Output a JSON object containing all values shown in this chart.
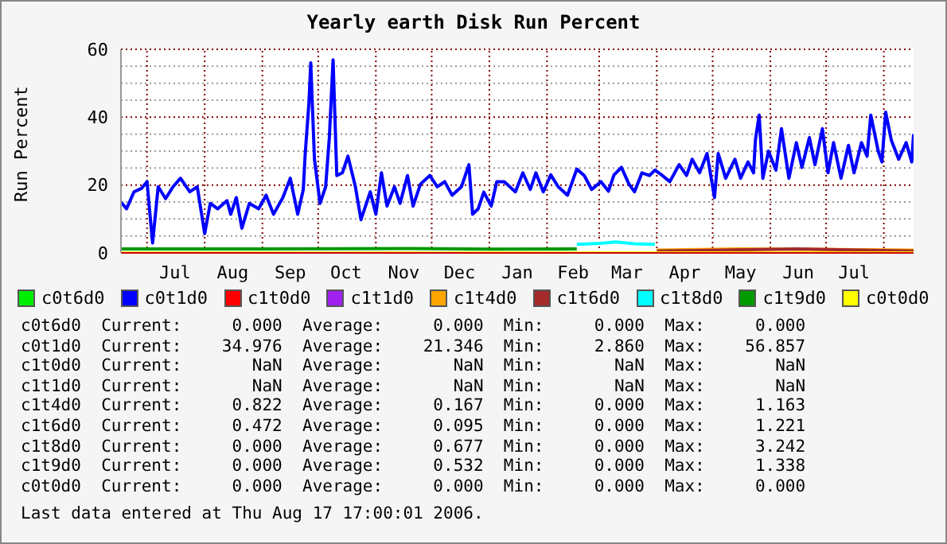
{
  "chart_data": {
    "type": "line",
    "title": "Yearly earth Disk Run Percent",
    "ylabel": "Run Percent",
    "xlim": [
      "2005-06-17",
      "2006-08-17"
    ],
    "xticks": [
      {
        "value": "2005-07-01",
        "label": null
      },
      {
        "value": "2005-07-16",
        "label": "Jul"
      },
      {
        "value": "2005-08-01",
        "label": null
      },
      {
        "value": "2005-08-16",
        "label": "Aug"
      },
      {
        "value": "2005-09-01",
        "label": null
      },
      {
        "value": "2005-09-16",
        "label": "Sep"
      },
      {
        "value": "2005-10-01",
        "label": null
      },
      {
        "value": "2005-10-16",
        "label": "Oct"
      },
      {
        "value": "2005-11-01",
        "label": null
      },
      {
        "value": "2005-11-16",
        "label": "Nov"
      },
      {
        "value": "2005-12-01",
        "label": null
      },
      {
        "value": "2005-12-16",
        "label": "Dec"
      },
      {
        "value": "2006-01-01",
        "label": null
      },
      {
        "value": "2006-01-16",
        "label": "Jan"
      },
      {
        "value": "2006-02-01",
        "label": null
      },
      {
        "value": "2006-02-15",
        "label": "Feb"
      },
      {
        "value": "2006-03-01",
        "label": null
      },
      {
        "value": "2006-03-16",
        "label": "Mar"
      },
      {
        "value": "2006-04-01",
        "label": null
      },
      {
        "value": "2006-04-16",
        "label": "Apr"
      },
      {
        "value": "2006-05-01",
        "label": null
      },
      {
        "value": "2006-05-16",
        "label": "May"
      },
      {
        "value": "2006-06-01",
        "label": null
      },
      {
        "value": "2006-06-16",
        "label": "Jun"
      },
      {
        "value": "2006-07-01",
        "label": null
      },
      {
        "value": "2006-07-16",
        "label": "Jul"
      },
      {
        "value": "2006-08-01",
        "label": null
      }
    ],
    "ylim": [
      0,
      60
    ],
    "yticks": [
      0,
      {
        "value": 5,
        "label": null
      },
      {
        "value": 10,
        "label": null
      },
      {
        "value": 15,
        "label": null
      },
      20,
      {
        "value": 25,
        "label": null
      },
      {
        "value": 30,
        "label": null
      },
      {
        "value": 35,
        "label": null
      },
      40,
      {
        "value": 45,
        "label": null
      },
      {
        "value": 50,
        "label": null
      },
      {
        "value": 55,
        "label": null
      },
      60
    ],
    "grid": true,
    "legend": "bottom",
    "marker": "none",
    "line_style": "solid",
    "series": [
      {
        "name": "c0t6d0",
        "color": "#00ee00"
      },
      {
        "name": "c0t1d0",
        "color": "#0000ff",
        "x": [
          "2005-06-17",
          "2005-06-20",
          "2005-06-24",
          "2005-06-28",
          "2005-07-01",
          "2005-07-04",
          "2005-07-07",
          "2005-07-11",
          "2005-07-15",
          "2005-07-19",
          "2005-07-24",
          "2005-07-28",
          "2005-08-01",
          "2005-08-04",
          "2005-08-08",
          "2005-08-13",
          "2005-08-15",
          "2005-08-18",
          "2005-08-21",
          "2005-08-25",
          "2005-08-30",
          "2005-09-03",
          "2005-09-07",
          "2005-09-12",
          "2005-09-16",
          "2005-09-20",
          "2005-09-23",
          "2005-09-24",
          "2005-09-26",
          "2005-09-27",
          "2005-09-29",
          "2005-10-02",
          "2005-10-05",
          "2005-10-07",
          "2005-10-09",
          "2005-10-11",
          "2005-10-14",
          "2005-10-17",
          "2005-10-21",
          "2005-10-24",
          "2005-10-29",
          "2005-11-01",
          "2005-11-04",
          "2005-11-07",
          "2005-11-11",
          "2005-11-14",
          "2005-11-18",
          "2005-11-21",
          "2005-11-25",
          "2005-11-30",
          "2005-12-04",
          "2005-12-08",
          "2005-12-12",
          "2005-12-17",
          "2005-12-21",
          "2005-12-23",
          "2005-12-26",
          "2005-12-29",
          "2006-01-02",
          "2006-01-05",
          "2006-01-09",
          "2006-01-15",
          "2006-01-19",
          "2006-01-23",
          "2006-01-26",
          "2006-01-30",
          "2006-02-03",
          "2006-02-07",
          "2006-02-12",
          "2006-02-17",
          "2006-02-21",
          "2006-02-25",
          "2006-03-02",
          "2006-03-06",
          "2006-03-09",
          "2006-03-13",
          "2006-03-17",
          "2006-03-20",
          "2006-03-24",
          "2006-03-28",
          "2006-03-31",
          "2006-04-04",
          "2006-04-08",
          "2006-04-13",
          "2006-04-17",
          "2006-04-20",
          "2006-04-24",
          "2006-04-28",
          "2006-05-02",
          "2006-05-04",
          "2006-05-08",
          "2006-05-13",
          "2006-05-16",
          "2006-05-20",
          "2006-05-23",
          "2006-05-24",
          "2006-05-26",
          "2006-05-28",
          "2006-05-31",
          "2006-06-04",
          "2006-06-07",
          "2006-06-11",
          "2006-06-15",
          "2006-06-18",
          "2006-06-22",
          "2006-06-25",
          "2006-06-29",
          "2006-07-02",
          "2006-07-05",
          "2006-07-09",
          "2006-07-13",
          "2006-07-16",
          "2006-07-20",
          "2006-07-23",
          "2006-07-25",
          "2006-07-29",
          "2006-07-31",
          "2006-08-02",
          "2006-08-05",
          "2006-08-09",
          "2006-08-13",
          "2006-08-16",
          "2006-08-17"
        ],
        "values": [
          15,
          13,
          18,
          19,
          21,
          2.9,
          19.5,
          16,
          19.5,
          22,
          18,
          19.5,
          5.7,
          14.6,
          13,
          15.4,
          11.4,
          16.3,
          7.3,
          14.6,
          13,
          17,
          11.4,
          16.3,
          22,
          11.4,
          18.7,
          29,
          44,
          56,
          27.6,
          14.6,
          19.5,
          34,
          56.9,
          22.8,
          23.6,
          28.5,
          19.5,
          9.8,
          18,
          11.4,
          23.6,
          13.8,
          19.5,
          14.6,
          22.8,
          13.8,
          20.3,
          22.8,
          19.5,
          21,
          17,
          19.5,
          26,
          11.4,
          13,
          17.9,
          13.8,
          21,
          21,
          18,
          23.6,
          18.7,
          23.6,
          18,
          23,
          19.5,
          17,
          24.7,
          22.8,
          18.7,
          21,
          18.2,
          23,
          25.2,
          20.3,
          18,
          23.6,
          22.8,
          24.4,
          22.8,
          21,
          26,
          22.8,
          27.6,
          23.6,
          29.3,
          16.3,
          29.3,
          22,
          27.6,
          22,
          26.8,
          23.6,
          33.3,
          40.6,
          22,
          30,
          24.4,
          36.6,
          22,
          32.5,
          25.2,
          34,
          26,
          36.6,
          23.6,
          32.5,
          22,
          31.7,
          23.6,
          32.5,
          28.5,
          40.6,
          30,
          26.8,
          41.5,
          33.3,
          27.6,
          32.5,
          26.8,
          35
        ]
      },
      {
        "name": "c1t0d0",
        "color": "#ff0000"
      },
      {
        "name": "c1t1d0",
        "color": "#a020f0"
      },
      {
        "name": "c1t4d0",
        "color": "#ffa500",
        "x": [
          "2006-04-01",
          "2006-05-15",
          "2006-08-17"
        ],
        "values": [
          0.8,
          1.2,
          0.8
        ]
      },
      {
        "name": "c1t6d0",
        "color": "#a52a2a",
        "x": [
          "2006-04-01",
          "2006-06-15",
          "2006-08-17"
        ],
        "values": [
          0.5,
          1.2,
          0.5
        ]
      },
      {
        "name": "c1t8d0",
        "color": "#00ffff",
        "x": [
          "2006-02-17",
          "2006-03-01",
          "2006-03-10",
          "2006-03-20",
          "2006-03-31"
        ],
        "values": [
          2.5,
          2.8,
          3.2,
          2.7,
          2.5
        ]
      },
      {
        "name": "c1t9d0",
        "color": "#009900",
        "x": [
          "2005-06-17",
          "2005-09-01",
          "2005-11-20",
          "2006-01-01",
          "2006-02-17"
        ],
        "values": [
          1.2,
          1.2,
          1.3,
          1.1,
          1.2
        ]
      },
      {
        "name": "c0t0d0",
        "color": "#ffff00",
        "x": [
          "2005-06-17",
          "2006-08-17"
        ],
        "values": [
          0,
          0
        ]
      }
    ],
    "annotations": [
      "c0t6d0  Current:     0.000  Average:     0.000  Min:     0.000  Max:     0.000",
      "c0t1d0  Current:    34.976  Average:    21.346  Min:     2.860  Max:    56.857",
      "c1t0d0  Current:       NaN  Average:       NaN  Min:       NaN  Max:       NaN",
      "c1t1d0  Current:       NaN  Average:       NaN  Min:       NaN  Max:       NaN",
      "c1t4d0  Current:     0.822  Average:     0.167  Min:     0.000  Max:     1.163",
      "c1t6d0  Current:     0.472  Average:     0.095  Min:     0.000  Max:     1.221",
      "c1t8d0  Current:     0.000  Average:     0.677  Min:     0.000  Max:     3.242",
      "c1t9d0  Current:     0.000  Average:     0.532  Min:     0.000  Max:     1.338",
      "c0t0d0  Current:     0.000  Average:     0.000  Min:     0.000  Max:     0.000",
      "Last data entered at Thu Aug 17 17:00:01 2006."
    ]
  }
}
